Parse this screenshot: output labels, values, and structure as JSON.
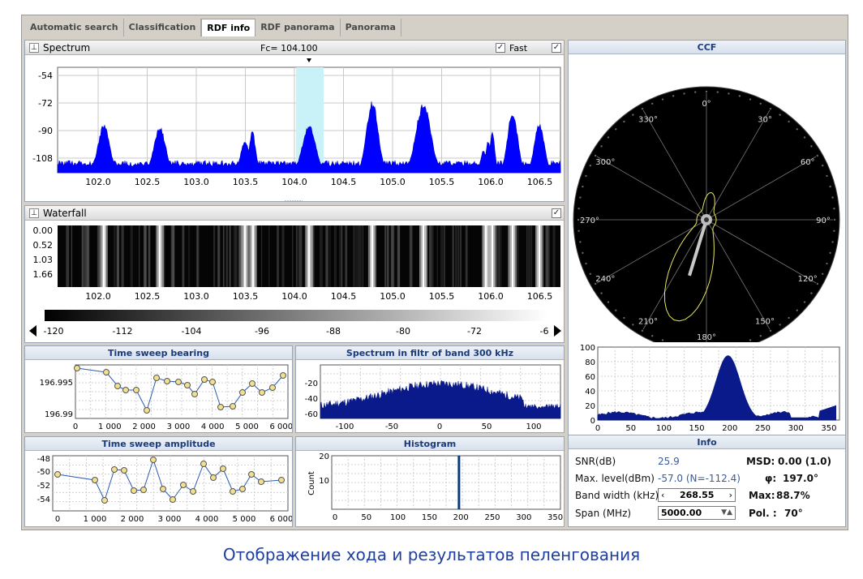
{
  "tabs": [
    "Automatic search",
    "Classification",
    "RDF info",
    "RDF panorama",
    "Panorama"
  ],
  "active_tab": 2,
  "spectrum": {
    "title": "Spectrum",
    "fc_label": "Fc= 104.100",
    "fast_label": "Fast",
    "y_ticks": [
      "-54",
      "-72",
      "-90",
      "-108"
    ],
    "x_ticks": [
      "102.0",
      "102.5",
      "103.0",
      "103.5",
      "104.0",
      "104.5",
      "105.0",
      "105.5",
      "106.0",
      "106.5"
    ]
  },
  "waterfall": {
    "title": "Waterfall",
    "y_ticks": [
      "0.00",
      "0.52",
      "1.03",
      "1.66"
    ],
    "x_ticks": [
      "102.0",
      "102.5",
      "103.0",
      "103.5",
      "104.0",
      "104.5",
      "105.0",
      "105.5",
      "106.0",
      "106.5"
    ],
    "scale_ticks": [
      "-120",
      "-112",
      "-104",
      "-96",
      "-88",
      "-80",
      "-72",
      "-6"
    ]
  },
  "ccf": {
    "title": "CCF",
    "angles": [
      "0°",
      "30°",
      "60°",
      "90°",
      "120°",
      "150°",
      "180°",
      "210°",
      "240°",
      "270°",
      "300°",
      "330°"
    ],
    "bearing_deg": 197
  },
  "ccf_hist": {
    "y_ticks": [
      "100",
      "80",
      "60",
      "40",
      "20",
      "0"
    ],
    "x_ticks": [
      "0",
      "50",
      "100",
      "150",
      "200",
      "250",
      "300",
      "350"
    ]
  },
  "time_sweep_bearing": {
    "title": "Time sweep bearing",
    "y_ticks": [
      "196.995",
      "196.99"
    ],
    "x_ticks": [
      "0",
      "1 000",
      "2 000",
      "3 000",
      "4 000",
      "5 000",
      "6 000"
    ]
  },
  "spectrum_filtr": {
    "title": "Spectrum in filtr of band 300 kHz",
    "y_ticks": [
      "-20",
      "-40",
      "-60"
    ],
    "x_ticks": [
      "-100",
      "-50",
      "0",
      "50",
      "100"
    ]
  },
  "time_sweep_amplitude": {
    "title": "Time sweep amplitude",
    "y_ticks": [
      "-48",
      "-50",
      "-52",
      "-54"
    ],
    "x_ticks": [
      "0",
      "1 000",
      "2 000",
      "3 000",
      "4 000",
      "5 000",
      "6 000"
    ]
  },
  "histogram": {
    "title": "Histogram",
    "ylabel": "Count",
    "y_ticks": [
      "20",
      "10"
    ],
    "x_ticks": [
      "0",
      "50",
      "100",
      "150",
      "200",
      "250",
      "300",
      "350"
    ],
    "peak_x": 197
  },
  "info": {
    "title": "Info",
    "snr_label": "SNR(dB)",
    "snr_value": "25.9",
    "max_level_label": "Max. level(dBm)",
    "max_level_value": "-57.0 (N=-112.4)",
    "bandwidth_label": "Band width (kHz)",
    "bandwidth_value": "268.55",
    "span_label": "Span (MHz)",
    "span_value": "5000.00",
    "msd_label": "MSD:",
    "msd_value": "0.00 (1.0)",
    "phi_label": "φ:",
    "phi_value": "197.0°",
    "max_label": "Max:",
    "max_value": "88.7%",
    "pol_label": "Pol. :",
    "pol_value": "70°"
  },
  "caption": "Отображение хода и результатов пеленгования",
  "colors": {
    "signal": "#0000ff",
    "navy": "#0a1a8a",
    "title_text": "#1a3a7a"
  }
}
